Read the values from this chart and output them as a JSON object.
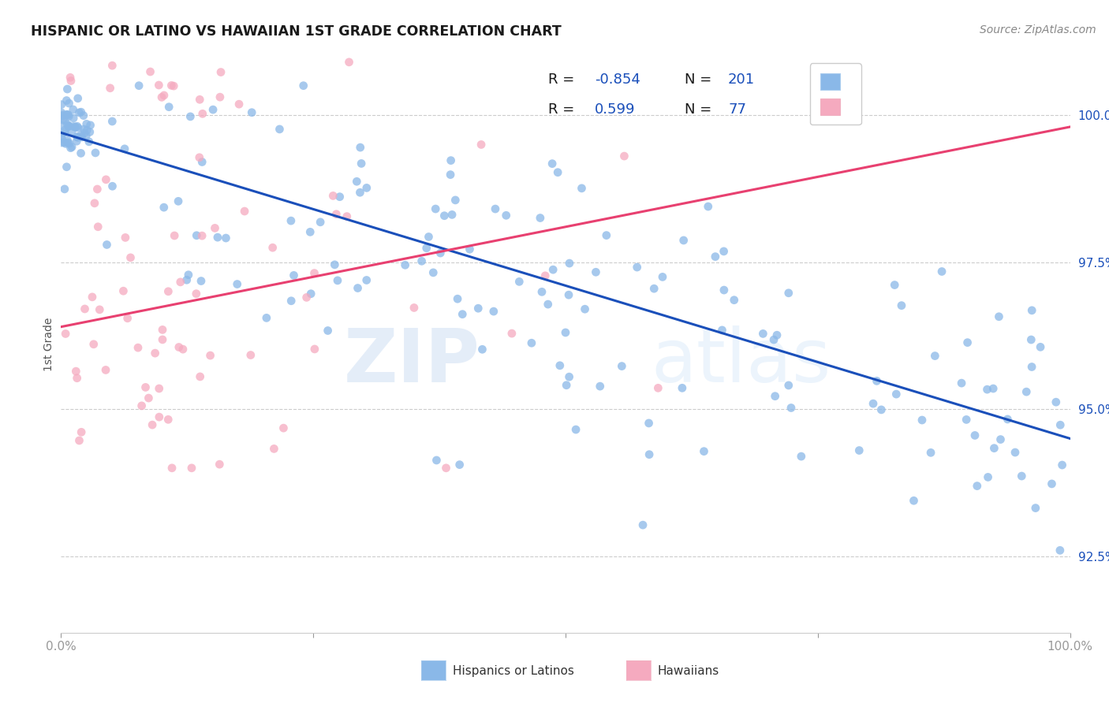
{
  "title": "HISPANIC OR LATINO VS HAWAIIAN 1ST GRADE CORRELATION CHART",
  "source": "Source: ZipAtlas.com",
  "ylabel": "1st Grade",
  "ytick_labels": [
    "92.5%",
    "95.0%",
    "97.5%",
    "100.0%"
  ],
  "ytick_values": [
    0.925,
    0.95,
    0.975,
    1.0
  ],
  "xrange": [
    0.0,
    1.0
  ],
  "yrange": [
    0.912,
    1.01
  ],
  "blue_R": -0.854,
  "blue_N": 201,
  "pink_R": 0.599,
  "pink_N": 77,
  "blue_color": "#8ab8e8",
  "pink_color": "#f5aabf",
  "blue_line_color": "#1a4fba",
  "pink_line_color": "#e84070",
  "watermark_zip": "ZIP",
  "watermark_atlas": "atlas",
  "legend_label_blue": "Hispanics or Latinos",
  "legend_label_pink": "Hawaiians",
  "blue_line_x0": 0.0,
  "blue_line_y0": 0.997,
  "blue_line_x1": 1.0,
  "blue_line_y1": 0.945,
  "pink_line_x0": 0.0,
  "pink_line_y0": 0.964,
  "pink_line_x1": 1.0,
  "pink_line_y1": 0.998
}
